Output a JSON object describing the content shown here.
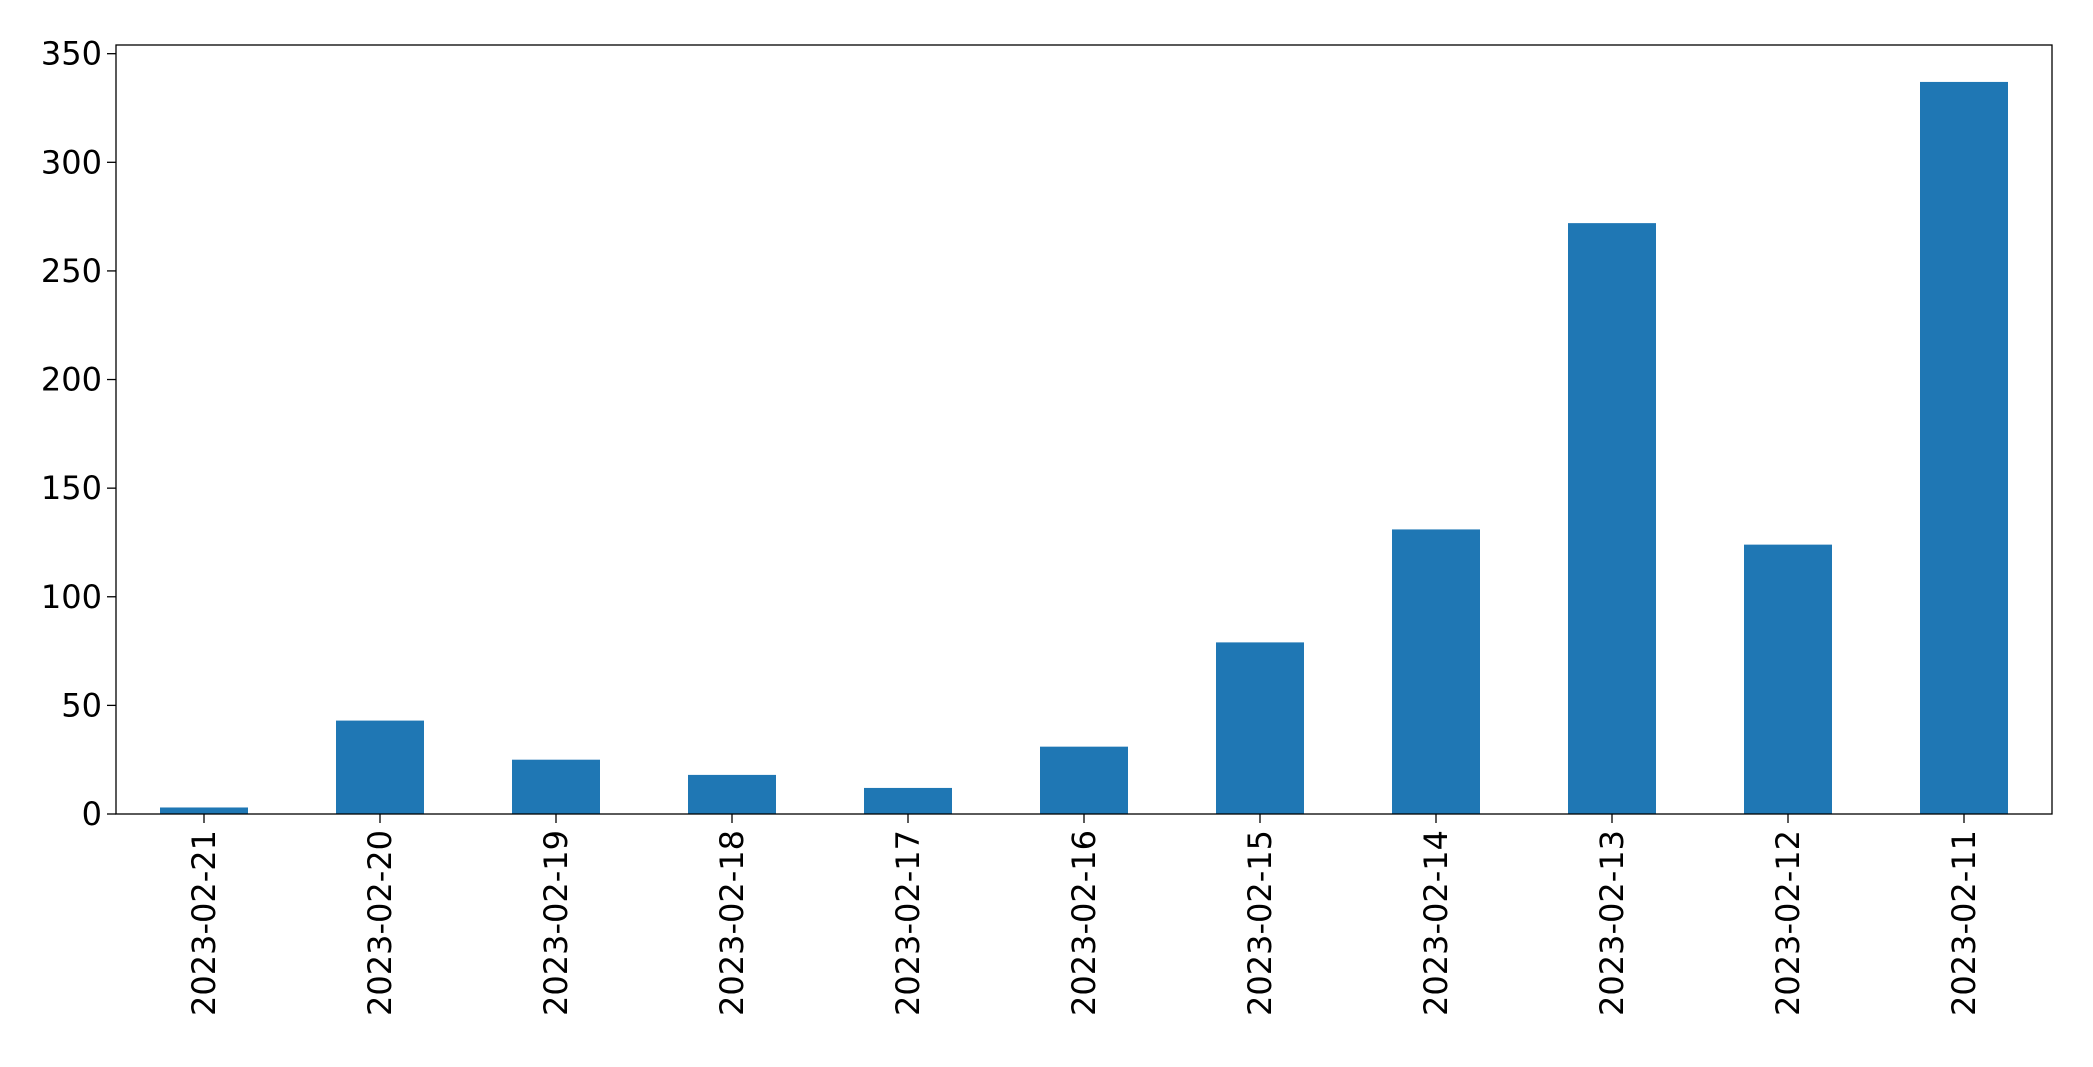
{
  "chart_data": {
    "type": "bar",
    "categories": [
      "2023-02-21",
      "2023-02-20",
      "2023-02-19",
      "2023-02-18",
      "2023-02-17",
      "2023-02-16",
      "2023-02-15",
      "2023-02-14",
      "2023-02-13",
      "2023-02-12",
      "2023-02-11"
    ],
    "values": [
      3,
      43,
      25,
      18,
      12,
      31,
      79,
      131,
      272,
      124,
      337
    ],
    "color": "#1f77b4",
    "ylim": [
      0,
      354
    ],
    "yticks": [
      0,
      50,
      100,
      150,
      200,
      250,
      300,
      350
    ],
    "grid": false
  }
}
